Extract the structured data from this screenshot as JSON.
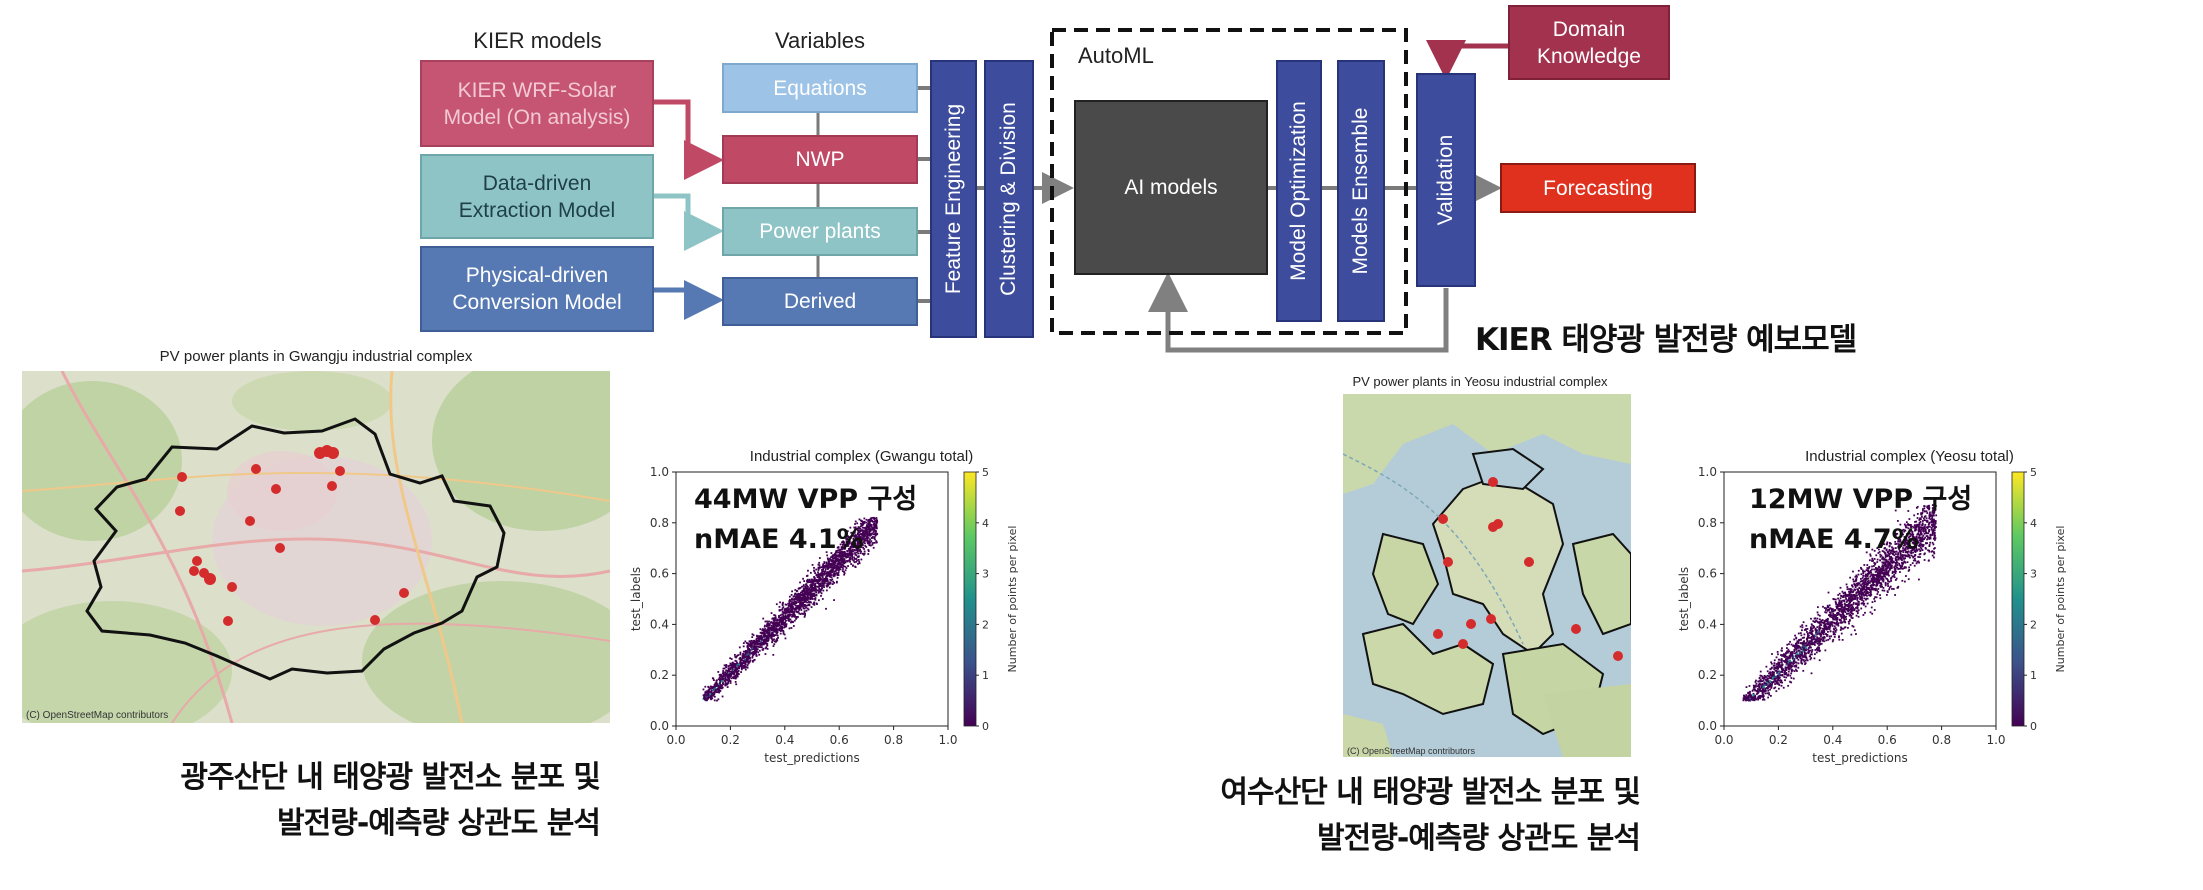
{
  "diagram": {
    "headers": {
      "kier_models": "KIER models",
      "variables": "Variables",
      "automl": "AutoML"
    },
    "kier_models": [
      {
        "label": "KIER WRF-Solar\nModel (On analysis)"
      },
      {
        "label": "Data-driven\nExtraction Model"
      },
      {
        "label": "Physical-driven\nConversion Model"
      }
    ],
    "variables": [
      {
        "label": "Equations"
      },
      {
        "label": "NWP"
      },
      {
        "label": "Power plants"
      },
      {
        "label": "Derived"
      }
    ],
    "stages": {
      "feature_engineering": "Feature Engineering",
      "clustering": "Clustering & Division",
      "ai_models": "AI models",
      "model_optimization": "Model Optimization",
      "models_ensemble": "Models Ensemble",
      "validation": "Validation",
      "forecasting": "Forecasting",
      "domain_knowledge": "Domain\nKnowledge"
    },
    "title_kr": "KIER 태양광 발전량 예보모델",
    "colors": {
      "wrf": "#c55572",
      "nwp": "#c04a66",
      "data_driven": "#8fc4c7",
      "power_plants": "#8fc4c7",
      "physical": "#5779b3",
      "derived": "#5779b3",
      "equations": "#9dc3e6",
      "stage_blue": "#3d4c9c",
      "ai_models": "#4a4a4a",
      "forecasting": "#e0301e",
      "domain": "#a3324f"
    }
  },
  "gwangju": {
    "map_title": "PV power plants in Gwangju industrial complex",
    "attribution": "(C) OpenStreetMap contributors",
    "plot_title": "Industrial complex (Gwangu total)",
    "annotation_line1": "44MW VPP 구성",
    "annotation_line2": "nMAE 4.1%",
    "caption_line1": "광주산단 내 태양광 발전소 분포 및",
    "caption_line2": "발전량-예측량 상관도 분석"
  },
  "yeosu": {
    "map_title": "PV power plants in Yeosu industrial complex",
    "attribution": "(C) OpenStreetMap contributors",
    "plot_title": "Industrial complex (Yeosu total)",
    "annotation_line1": "12MW VPP 구성",
    "annotation_line2": "nMAE 4.7%",
    "caption_line1": "여수산단 내 태양광 발전소 분포 및",
    "caption_line2": "발전량-예측량 상관도 분석"
  },
  "chart_data": [
    {
      "type": "scatter",
      "title": "Industrial complex (Gwangu total)",
      "xlabel": "test_predictions",
      "ylabel": "test_labels",
      "xlim": [
        0.0,
        1.0
      ],
      "ylim": [
        0.0,
        1.0
      ],
      "x_ticks": [
        "0.0",
        "0.2",
        "0.4",
        "0.6",
        "0.8",
        "1.0"
      ],
      "y_ticks": [
        "0.0",
        "0.2",
        "0.4",
        "0.6",
        "0.8",
        "1.0"
      ],
      "colorbar_label": "Number of points per pixel",
      "colorbar_ticks": [
        "0",
        "1",
        "2",
        "3",
        "4",
        "5"
      ],
      "colorbar_range": [
        0,
        5
      ],
      "colormap": "viridis",
      "point_cloud": {
        "x_range": [
          0.1,
          0.74
        ],
        "y_range": [
          0.1,
          0.82
        ],
        "trend": "y ≈ 1.1x - 0.01"
      }
    },
    {
      "type": "scatter",
      "title": "Industrial complex (Yeosu total)",
      "xlabel": "test_predictions",
      "ylabel": "test_labels",
      "xlim": [
        0.0,
        1.0
      ],
      "ylim": [
        0.0,
        1.0
      ],
      "x_ticks": [
        "0.0",
        "0.2",
        "0.4",
        "0.6",
        "0.8",
        "1.0"
      ],
      "y_ticks": [
        "0.0",
        "0.2",
        "0.4",
        "0.6",
        "0.8",
        "1.0"
      ],
      "colorbar_label": "Number of points per pixel",
      "colorbar_ticks": [
        "0",
        "1",
        "2",
        "3",
        "4",
        "5"
      ],
      "colorbar_range": [
        0,
        5
      ],
      "colormap": "viridis",
      "point_cloud": {
        "x_range": [
          0.07,
          0.78
        ],
        "y_range": [
          0.1,
          0.87
        ],
        "trend": "y ≈ 1.05x"
      }
    }
  ]
}
